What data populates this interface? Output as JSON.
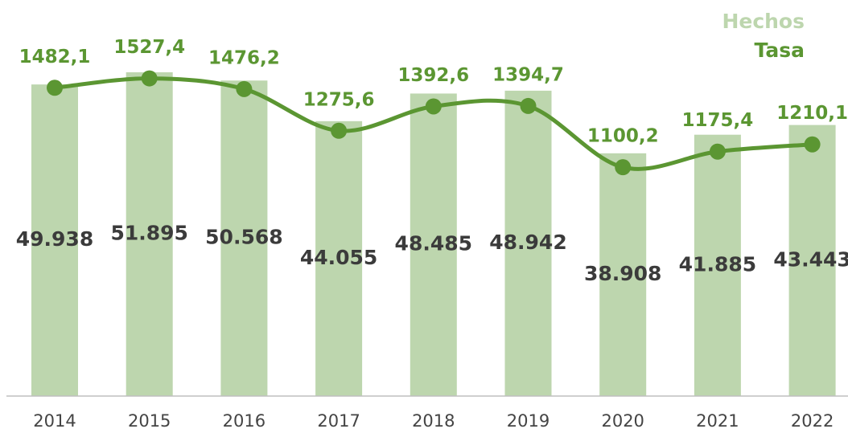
{
  "chart_data": {
    "type": "bar-line",
    "categories": [
      "2014",
      "2015",
      "2016",
      "2017",
      "2018",
      "2019",
      "2020",
      "2021",
      "2022"
    ],
    "series": [
      {
        "name": "Hechos",
        "type": "bar",
        "color": "#bdd6ae",
        "values": [
          49938,
          51895,
          50568,
          44055,
          48485,
          48942,
          38908,
          41885,
          43443
        ],
        "value_labels": [
          "49.938",
          "51.895",
          "50.568",
          "44.055",
          "48.485",
          "48.942",
          "38.908",
          "41.885",
          "43.443"
        ]
      },
      {
        "name": "Tasa",
        "type": "line",
        "axis": "y2",
        "color": "#5b9632",
        "values": [
          1482.1,
          1527.4,
          1476.2,
          1275.6,
          1392.6,
          1394.7,
          1100.2,
          1175.4,
          1210.1
        ],
        "value_labels": [
          "1482,1",
          "1527,4",
          "1476,2",
          "1275,6",
          "1392,6",
          "1394,7",
          "1100,2",
          "1175,4",
          "1210,1"
        ]
      }
    ],
    "ylim": [
      0,
      60000
    ],
    "y2lim": [
      0,
      1800
    ],
    "legend": "top-right"
  }
}
